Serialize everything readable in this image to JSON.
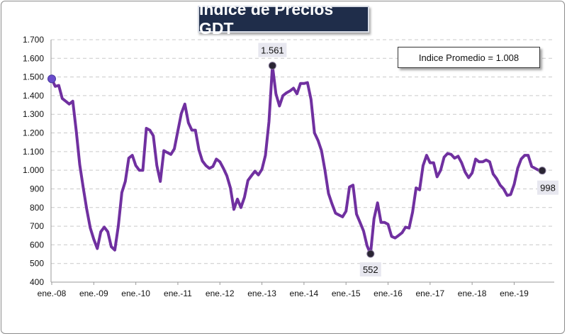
{
  "header": {
    "title": "Indice de Precios GDT"
  },
  "average_box": {
    "label": "Indice Promedio  =  1.008"
  },
  "colors": {
    "line": "#7030a0",
    "title_bg": "#1f2d4a",
    "marker_start": "#6a4ccc",
    "marker": "#2a2533"
  },
  "chart_data": {
    "type": "line",
    "title": "Indice de Precios GDT",
    "xlabel": "",
    "ylabel": "",
    "ylim": [
      400,
      1700
    ],
    "yticks": [
      400,
      500,
      600,
      700,
      800,
      900,
      1000,
      1100,
      1200,
      1300,
      1400,
      1500,
      1600,
      1700
    ],
    "ytick_labels": [
      "400",
      "500",
      "600",
      "700",
      "800",
      "900",
      "1.000",
      "1.100",
      "1.200",
      "1.300",
      "1.400",
      "1.500",
      "1.600",
      "1.700"
    ],
    "xtick_labels": [
      "ene.-08",
      "ene.-09",
      "ene.-10",
      "ene.-11",
      "ene.-12",
      "ene.-13",
      "ene.-14",
      "ene.-15",
      "ene.-16",
      "ene.-17",
      "ene.-18",
      "ene.-19"
    ],
    "grid": true,
    "series": [
      {
        "values": [
          1490,
          1450,
          1455,
          1385,
          1370,
          1355,
          1370,
          1210,
          1030,
          905,
          790,
          690,
          630,
          580,
          670,
          695,
          670,
          590,
          572,
          700,
          880,
          940,
          1065,
          1080,
          1025,
          1000,
          1000,
          1225,
          1215,
          1185,
          1025,
          940,
          1105,
          1095,
          1085,
          1115,
          1210,
          1305,
          1355,
          1255,
          1215,
          1215,
          1110,
          1050,
          1025,
          1010,
          1020,
          1060,
          1045,
          1010,
          970,
          905,
          790,
          845,
          800,
          855,
          945,
          970,
          995,
          975,
          1005,
          1080,
          1260,
          1561,
          1410,
          1345,
          1400,
          1415,
          1425,
          1440,
          1410,
          1465,
          1465,
          1470,
          1380,
          1200,
          1160,
          1105,
          1000,
          875,
          820,
          770,
          760,
          750,
          780,
          910,
          920,
          765,
          720,
          675,
          595,
          552,
          740,
          825,
          720,
          720,
          710,
          645,
          637,
          650,
          665,
          695,
          690,
          775,
          905,
          895,
          1025,
          1080,
          1040,
          1040,
          965,
          1000,
          1070,
          1090,
          1085,
          1065,
          1075,
          1040,
          990,
          960,
          985,
          1060,
          1045,
          1045,
          1055,
          1045,
          980,
          955,
          920,
          900,
          865,
          870,
          925,
          1010,
          1060,
          1080,
          1080,
          1020,
          1010,
          1000,
          998
        ]
      }
    ],
    "annotations": [
      {
        "label": "1.561",
        "value": 1561
      },
      {
        "label": "552",
        "value": 552
      },
      {
        "label": "998",
        "value": 998
      }
    ]
  }
}
